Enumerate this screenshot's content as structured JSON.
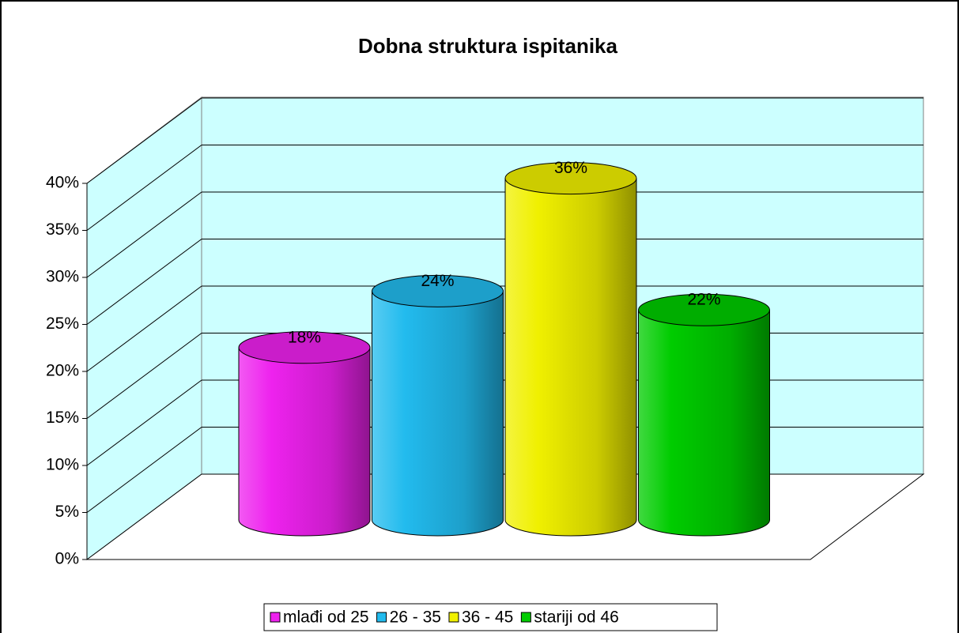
{
  "chart_data": {
    "type": "bar3d-cylinder",
    "title": "Dobna struktura ispitanika",
    "series": [
      {
        "name": "mlađi od 25",
        "color": "#ee22ee",
        "values": [
          18
        ],
        "value_labels": [
          "18%"
        ]
      },
      {
        "name": "26 - 35",
        "color": "#22bbee",
        "values": [
          24
        ],
        "value_labels": [
          "24%"
        ]
      },
      {
        "name": "36 - 45",
        "color": "#f0f000",
        "values": [
          36
        ],
        "value_labels": [
          "36%"
        ]
      },
      {
        "name": "stariji od 46",
        "color": "#00cc00",
        "values": [
          22
        ],
        "value_labels": [
          "22%"
        ]
      }
    ],
    "ylim": [
      0,
      40
    ],
    "yticks": [
      {
        "value": 0,
        "label": "0%"
      },
      {
        "value": 5,
        "label": "5%"
      },
      {
        "value": 10,
        "label": "10%"
      },
      {
        "value": 15,
        "label": "15%"
      },
      {
        "value": 20,
        "label": "20%"
      },
      {
        "value": 25,
        "label": "25%"
      },
      {
        "value": 30,
        "label": "30%"
      },
      {
        "value": 35,
        "label": "35%"
      },
      {
        "value": 40,
        "label": "40%"
      }
    ],
    "grid": true,
    "legend": "bottom"
  }
}
